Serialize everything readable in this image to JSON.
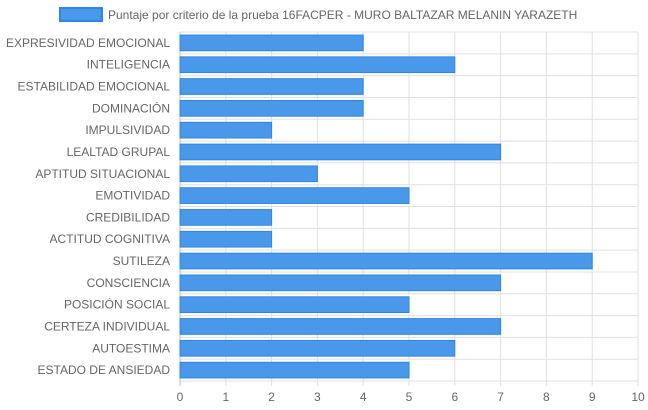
{
  "chart_data": {
    "type": "bar",
    "orientation": "horizontal",
    "categories": [
      "EXPRESIVIDAD EMOCIONAL",
      "INTELIGENCIA",
      "ESTABILIDAD EMOCIONAL",
      "DOMINACIÓN",
      "IMPULSIVIDAD",
      "LEALTAD GRUPAL",
      "APTITUD SITUACIONAL",
      "EMOTIVIDAD",
      "CREDIBILIDAD",
      "ACTITUD COGNITIVA",
      "SUTILEZA",
      "CONSCIENCIA",
      "POSICIÓN SOCIAL",
      "CERTEZA INDIVIDUAL",
      "AUTOESTIMA",
      "ESTADO DE ANSIEDAD"
    ],
    "series": [
      {
        "name": "Puntaje por criterio de la prueba 16FACPER - MURO BALTAZAR MELANIN YARAZETH",
        "values": [
          4,
          6,
          4,
          4,
          2,
          7,
          3,
          5,
          2,
          2,
          9,
          7,
          5,
          7,
          6,
          5
        ]
      }
    ],
    "xlim": [
      0,
      10
    ],
    "xticks": [
      "0",
      "1",
      "2",
      "3",
      "4",
      "5",
      "6",
      "7",
      "8",
      "9",
      "10"
    ],
    "grid": true,
    "legend": "top",
    "colors": {
      "bar_fill": "#4a98ea",
      "bar_stroke": "#2f86e6",
      "grid": "#e0e0e0",
      "text": "#666666"
    }
  }
}
